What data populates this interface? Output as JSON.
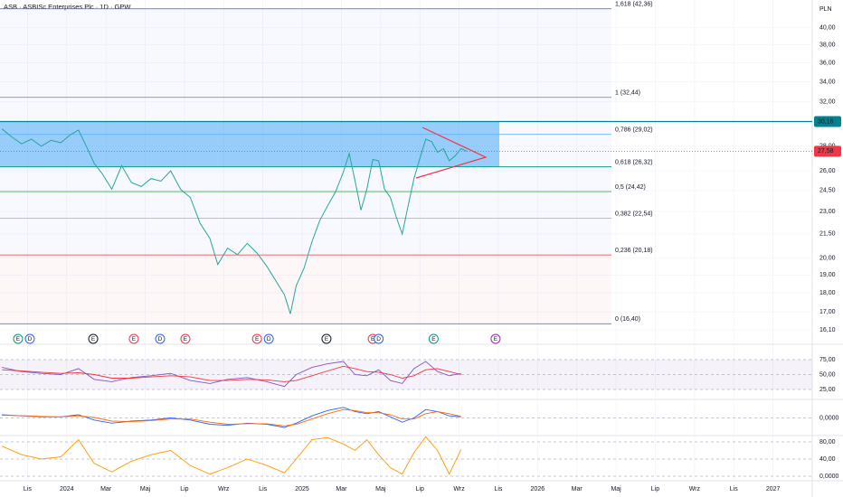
{
  "chart_data": [
    {
      "type": "line",
      "title": "ASB · ASBISc Enterprises Plc · 1D · GPW",
      "currency": "PLN",
      "log_scale": true,
      "grid": true,
      "x": [
        -1.3,
        -0.8,
        -0.3,
        0.2,
        0.7,
        1.2,
        1.7,
        2.2,
        2.6,
        3.0,
        3.4,
        3.8,
        4.3,
        4.8,
        5.3,
        5.8,
        6.3,
        6.8,
        7.3,
        7.8,
        8.3,
        8.8,
        9.3,
        9.7,
        10.2,
        10.7,
        11.2,
        11.7,
        12.2,
        12.7,
        13.1,
        13.4,
        13.7,
        14.1,
        14.5,
        14.9,
        15.3,
        15.7,
        16.1,
        16.4,
        16.7,
        17.0,
        17.3,
        17.6,
        17.9,
        18.2,
        18.5,
        18.8,
        19.1,
        19.4,
        19.7,
        20.0,
        20.3,
        20.6,
        20.9,
        21.2,
        21.5,
        21.8,
        22.1,
        22.4
      ],
      "series": [
        {
          "color": "#26a69a",
          "values": [
            29.5,
            28.8,
            28.2,
            28.6,
            28.0,
            28.5,
            28.3,
            29.0,
            29.4,
            28.0,
            26.6,
            25.8,
            24.6,
            26.4,
            25.1,
            24.8,
            25.4,
            25.2,
            26.0,
            24.6,
            24.0,
            22.2,
            21.2,
            19.6,
            20.6,
            20.2,
            20.9,
            20.3,
            19.5,
            18.6,
            17.9,
            16.9,
            18.4,
            19.4,
            21.0,
            22.4,
            23.4,
            24.4,
            25.9,
            27.4,
            25.2,
            23.1,
            24.6,
            26.9,
            26.8,
            24.6,
            24.0,
            22.6,
            21.5,
            23.4,
            25.4,
            27.0,
            28.6,
            28.4,
            27.5,
            27.8,
            26.8,
            27.2,
            27.8,
            27.58
          ]
        }
      ],
      "xlim": [
        -1.4,
        40
      ],
      "ylim": [
        15.46,
        43.5
      ],
      "xticks": [
        {
          "value": 0,
          "label": "Lis"
        },
        {
          "value": 2,
          "label": "2024"
        },
        {
          "value": 4,
          "label": "Mar"
        },
        {
          "value": 6,
          "label": "Maj"
        },
        {
          "value": 8,
          "label": "Lip"
        },
        {
          "value": 10,
          "label": "Wrz"
        },
        {
          "value": 12,
          "label": "Lis"
        },
        {
          "value": 14,
          "label": "2025"
        },
        {
          "value": 16,
          "label": "Mar"
        },
        {
          "value": 18,
          "label": "Maj"
        },
        {
          "value": 20,
          "label": "Lip"
        },
        {
          "value": 22,
          "label": "Wrz"
        },
        {
          "value": 24,
          "label": "Lis"
        },
        {
          "value": 26,
          "label": "2026"
        },
        {
          "value": 28,
          "label": "Mar"
        },
        {
          "value": 30,
          "label": "Maj"
        },
        {
          "value": 32,
          "label": "Lip"
        },
        {
          "value": 34,
          "label": "Wrz"
        },
        {
          "value": 36,
          "label": "Lis"
        },
        {
          "value": 38,
          "label": "2027"
        }
      ],
      "yticks": [
        {
          "value": 40,
          "label": "40,00"
        },
        {
          "value": 38,
          "label": "38,00"
        },
        {
          "value": 36,
          "label": "36,00"
        },
        {
          "value": 34,
          "label": "34,00"
        },
        {
          "value": 32,
          "label": "32,00"
        },
        {
          "value": 28,
          "label": "28,00"
        },
        {
          "value": 26,
          "label": "26,00"
        },
        {
          "value": 24.5,
          "label": "24,50"
        },
        {
          "value": 23,
          "label": "23,00"
        },
        {
          "value": 21.5,
          "label": "21,50"
        },
        {
          "value": 20,
          "label": "20,00"
        },
        {
          "value": 19,
          "label": "19,00"
        },
        {
          "value": 18,
          "label": "18,00"
        },
        {
          "value": 17,
          "label": "17,00"
        },
        {
          "value": 16.1,
          "label": "16,10"
        }
      ],
      "levels": [
        {
          "value": 42.36,
          "label": "1,618 (42,36)",
          "color": "#2962ff"
        },
        {
          "value": 32.44,
          "label": "1 (32,44)",
          "color": "#787b86"
        },
        {
          "value": 29.02,
          "label": "0,786 (29,02)",
          "color": "#64b5f6"
        },
        {
          "value": 26.32,
          "label": "0,618 (26,32)",
          "color": "#089981"
        },
        {
          "value": 24.42,
          "label": "0,5 (24,42)",
          "color": "#4caf50"
        },
        {
          "value": 22.54,
          "label": "0,382 (22,54)",
          "color": "#81c784"
        },
        {
          "value": 20.18,
          "label": "0,236 (20,18)",
          "color": "#f23645"
        },
        {
          "value": 16.4,
          "label": "0 (16,40)",
          "color": "#787b86"
        }
      ],
      "resistance": {
        "value": 30.16,
        "label": "30,16",
        "color": "#00838f"
      },
      "last_price": {
        "value": 27.58,
        "label": "27,58",
        "color": "#f23645"
      },
      "events": [
        {
          "label": "E",
          "x": -0.48,
          "color": "#089981"
        },
        {
          "label": "D",
          "x": 0.12,
          "color": "#2962ff"
        },
        {
          "label": "E",
          "x": 3.35,
          "color": "#131722"
        },
        {
          "label": "E",
          "x": 5.42,
          "color": "#f23645"
        },
        {
          "label": "D",
          "x": 6.76,
          "color": "#2962ff"
        },
        {
          "label": "E",
          "x": 8.05,
          "color": "#f23645"
        },
        {
          "label": "E",
          "x": 11.7,
          "color": "#f23645"
        },
        {
          "label": "D",
          "x": 12.3,
          "color": "#2962ff"
        },
        {
          "label": "E",
          "x": 15.24,
          "color": "#131722"
        },
        {
          "label": "E",
          "x": 17.6,
          "color": "#f23645"
        },
        {
          "label": "D",
          "x": 17.9,
          "color": "#2962ff"
        },
        {
          "label": "E",
          "x": 20.7,
          "color": "#089981"
        },
        {
          "label": "E",
          "x": 23.86,
          "color": "#9c27b0"
        }
      ]
    },
    {
      "type": "line",
      "grid": true,
      "band": true,
      "x": [
        -1.3,
        -0.3,
        0.7,
        1.7,
        2.6,
        3.4,
        4.3,
        5.3,
        6.3,
        7.3,
        8.3,
        9.3,
        10.2,
        11.2,
        12.2,
        13.1,
        13.7,
        14.5,
        15.3,
        16.1,
        16.7,
        17.3,
        17.9,
        18.5,
        19.1,
        19.7,
        20.3,
        20.9,
        21.5,
        22.1
      ],
      "series": [
        {
          "color": "#7e57c2",
          "values": [
            62,
            55,
            52,
            50,
            60,
            42,
            38,
            45,
            48,
            52,
            40,
            35,
            42,
            45,
            38,
            30,
            50,
            62,
            68,
            72,
            50,
            48,
            58,
            40,
            35,
            60,
            72,
            55,
            48,
            52
          ]
        },
        {
          "color": "#f23645",
          "values": [
            58,
            56,
            54,
            52,
            53,
            50,
            44,
            44,
            46,
            48,
            46,
            40,
            40,
            42,
            41,
            38,
            40,
            48,
            56,
            64,
            60,
            55,
            54,
            50,
            44,
            48,
            58,
            60,
            55,
            50
          ]
        }
      ],
      "xlim": [
        -1.4,
        40
      ],
      "ylim": [
        11.4,
        97.7
      ],
      "yticks": [
        {
          "value": 75,
          "label": "75,00"
        },
        {
          "value": 50,
          "label": "50,00"
        },
        {
          "value": 25,
          "label": "25,00"
        }
      ]
    },
    {
      "type": "line",
      "grid": true,
      "x": [
        -1.3,
        -0.3,
        0.7,
        1.7,
        2.6,
        3.4,
        4.3,
        5.3,
        6.3,
        7.3,
        8.3,
        9.3,
        10.2,
        11.2,
        12.2,
        13.1,
        13.7,
        14.5,
        15.3,
        16.1,
        16.7,
        17.3,
        17.9,
        18.5,
        19.1,
        19.7,
        20.3,
        20.9,
        21.5,
        22.1
      ],
      "series": [
        {
          "color": "#2962ff",
          "values": [
            0.3,
            0.2,
            0.1,
            0.1,
            0.3,
            -0.2,
            -0.5,
            -0.3,
            -0.2,
            0,
            -0.2,
            -0.6,
            -0.7,
            -0.5,
            -0.6,
            -0.9,
            -0.5,
            0.2,
            0.7,
            1.0,
            0.6,
            0.4,
            0.6,
            0.1,
            -0.4,
            0,
            0.8,
            0.6,
            0.2,
            0.1
          ]
        },
        {
          "color": "#ff6d00",
          "values": [
            0.25,
            0.22,
            0.15,
            0.1,
            0.2,
            0.05,
            -0.3,
            -0.35,
            -0.25,
            -0.1,
            -0.1,
            -0.4,
            -0.6,
            -0.55,
            -0.55,
            -0.75,
            -0.6,
            -0.1,
            0.4,
            0.8,
            0.7,
            0.5,
            0.5,
            0.3,
            -0.1,
            -0.1,
            0.4,
            0.6,
            0.4,
            0.15
          ]
        }
      ],
      "xlim": [
        -1.4,
        40
      ],
      "ylim": [
        -1.5,
        1.5
      ],
      "yticks": [
        {
          "value": 0,
          "label": "0,0000"
        }
      ]
    },
    {
      "type": "line",
      "grid": true,
      "x": [
        -1.3,
        -0.3,
        0.7,
        1.7,
        2.6,
        3.4,
        4.3,
        5.3,
        6.3,
        7.3,
        8.3,
        9.3,
        10.2,
        11.2,
        12.2,
        13.1,
        13.7,
        14.5,
        15.3,
        16.1,
        16.7,
        17.3,
        17.9,
        18.5,
        19.1,
        19.7,
        20.3,
        20.9,
        21.5,
        22.1
      ],
      "series": [
        {
          "color": "#ff9800",
          "values": [
            70,
            50,
            40,
            45,
            85,
            30,
            10,
            35,
            50,
            60,
            25,
            5,
            20,
            40,
            25,
            8,
            40,
            85,
            90,
            75,
            60,
            85,
            50,
            20,
            5,
            55,
            92,
            60,
            5,
            62
          ]
        }
      ],
      "xlim": [
        -1.4,
        40
      ],
      "ylim": [
        -6.3,
        88.4
      ],
      "yticks": [
        {
          "value": 80,
          "label": "80,00"
        },
        {
          "value": 40,
          "label": "40,00"
        },
        {
          "value": 0,
          "label": "0,0000"
        }
      ]
    }
  ]
}
